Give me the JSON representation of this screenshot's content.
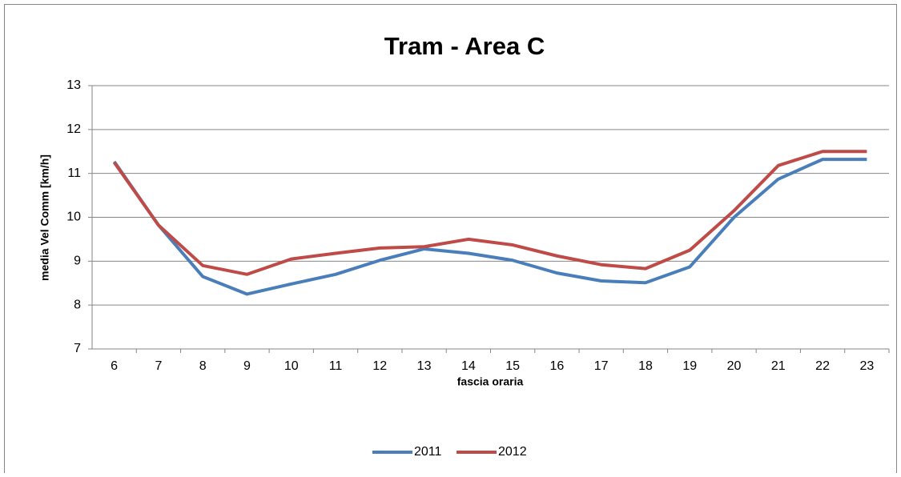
{
  "chart_data": {
    "type": "line",
    "title": "Tram - Area C",
    "xlabel": "fascia oraria",
    "ylabel": "media Vel Comm [km/h]",
    "categories": [
      "6",
      "7",
      "8",
      "9",
      "10",
      "11",
      "12",
      "13",
      "14",
      "15",
      "16",
      "17",
      "18",
      "19",
      "20",
      "21",
      "22",
      "23"
    ],
    "series": [
      {
        "name": "2011",
        "color": "#4a7ebb",
        "values": [
          11.27,
          9.82,
          8.65,
          8.25,
          8.48,
          8.7,
          9.02,
          9.28,
          9.18,
          9.02,
          8.73,
          8.55,
          8.51,
          8.87,
          10.0,
          10.87,
          11.32,
          11.32
        ]
      },
      {
        "name": "2012",
        "color": "#be4b48",
        "values": [
          11.25,
          9.82,
          8.9,
          8.7,
          9.05,
          9.18,
          9.3,
          9.33,
          9.5,
          9.37,
          9.12,
          8.92,
          8.83,
          9.25,
          10.15,
          11.18,
          11.5,
          11.5
        ]
      }
    ],
    "ylim": [
      7,
      13
    ],
    "yticks": [
      7,
      8,
      9,
      10,
      11,
      12,
      13
    ],
    "grid": true,
    "legend": "bottom"
  }
}
